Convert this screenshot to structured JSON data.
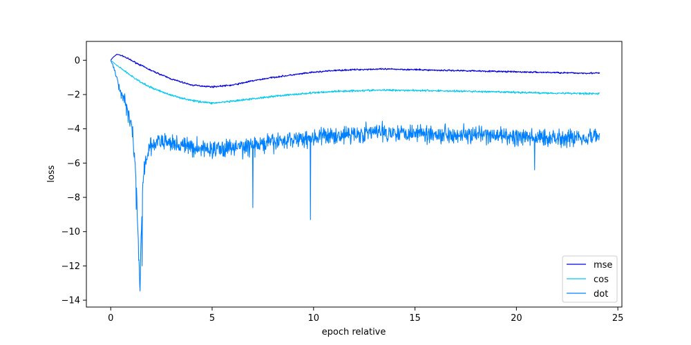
{
  "chart_data": {
    "type": "line",
    "title": "",
    "xlabel": "epoch relative",
    "ylabel": "loss",
    "xlim": [
      -1.2,
      25.2
    ],
    "ylim": [
      -14.4,
      1.1
    ],
    "xticks": [
      0,
      5,
      10,
      15,
      20,
      25
    ],
    "yticks": [
      0,
      -2,
      -4,
      -6,
      -8,
      -10,
      -12,
      -14
    ],
    "grid": false,
    "legend": "lower-right",
    "noise_seed": 7,
    "series": [
      {
        "name": "mse",
        "color": "#0000dd",
        "noise": 0.04,
        "points": [
          [
            0,
            0
          ],
          [
            0.1,
            0.15
          ],
          [
            0.3,
            0.35
          ],
          [
            0.6,
            0.25
          ],
          [
            1,
            0
          ],
          [
            1.5,
            -0.3
          ],
          [
            2,
            -0.6
          ],
          [
            3,
            -1.1
          ],
          [
            4,
            -1.45
          ],
          [
            5,
            -1.55
          ],
          [
            6,
            -1.45
          ],
          [
            7,
            -1.2
          ],
          [
            8,
            -1
          ],
          [
            9,
            -0.85
          ],
          [
            10,
            -0.7
          ],
          [
            11,
            -0.6
          ],
          [
            12,
            -0.55
          ],
          [
            13,
            -0.52
          ],
          [
            14,
            -0.52
          ],
          [
            15,
            -0.55
          ],
          [
            16,
            -0.58
          ],
          [
            17,
            -0.6
          ],
          [
            18,
            -0.62
          ],
          [
            19,
            -0.65
          ],
          [
            20,
            -0.68
          ],
          [
            21,
            -0.7
          ],
          [
            22,
            -0.72
          ],
          [
            23,
            -0.75
          ],
          [
            24.1,
            -0.75
          ]
        ]
      },
      {
        "name": "cos",
        "color": "#00c8ee",
        "noise": 0.05,
        "points": [
          [
            0,
            0
          ],
          [
            0.3,
            -0.3
          ],
          [
            0.6,
            -0.55
          ],
          [
            1,
            -0.9
          ],
          [
            1.5,
            -1.3
          ],
          [
            2,
            -1.6
          ],
          [
            3,
            -2.05
          ],
          [
            4,
            -2.35
          ],
          [
            5,
            -2.5
          ],
          [
            6,
            -2.4
          ],
          [
            7,
            -2.25
          ],
          [
            8,
            -2.1
          ],
          [
            9,
            -2
          ],
          [
            10,
            -1.9
          ],
          [
            11,
            -1.82
          ],
          [
            12,
            -1.78
          ],
          [
            13,
            -1.75
          ],
          [
            14,
            -1.74
          ],
          [
            15,
            -1.76
          ],
          [
            16,
            -1.78
          ],
          [
            17,
            -1.8
          ],
          [
            18,
            -1.82
          ],
          [
            19,
            -1.85
          ],
          [
            20,
            -1.87
          ],
          [
            21,
            -1.9
          ],
          [
            22,
            -1.92
          ],
          [
            23,
            -1.93
          ],
          [
            24.1,
            -1.95
          ]
        ]
      },
      {
        "name": "dot",
        "color": "#0080ff",
        "noise": 0.45,
        "points": [
          [
            0,
            0
          ],
          [
            0.2,
            -0.6
          ],
          [
            0.4,
            -1.5
          ],
          [
            0.6,
            -2.2
          ],
          [
            0.8,
            -2.8
          ],
          [
            1,
            -3.6
          ],
          [
            1.1,
            -4.5
          ],
          [
            1.2,
            -6
          ],
          [
            1.3,
            -8.5
          ],
          [
            1.4,
            -12
          ],
          [
            1.45,
            -13.6
          ],
          [
            1.5,
            -10
          ],
          [
            1.6,
            -7
          ],
          [
            1.7,
            -6
          ],
          [
            1.9,
            -5.2
          ],
          [
            2.2,
            -4.8
          ],
          [
            3,
            -4.8
          ],
          [
            4,
            -5.1
          ],
          [
            5,
            -5.2
          ],
          [
            6,
            -5.1
          ],
          [
            7,
            -5
          ],
          [
            8,
            -4.8
          ],
          [
            9,
            -4.6
          ],
          [
            10,
            -4.5
          ],
          [
            11,
            -4.4
          ],
          [
            12,
            -4.3
          ],
          [
            13,
            -4.2
          ],
          [
            14,
            -4.2
          ],
          [
            15,
            -4.2
          ],
          [
            16,
            -4.3
          ],
          [
            17,
            -4.3
          ],
          [
            18,
            -4.4
          ],
          [
            19,
            -4.4
          ],
          [
            20,
            -4.5
          ],
          [
            21,
            -4.5
          ],
          [
            22,
            -4.5
          ],
          [
            23,
            -4.5
          ],
          [
            24.1,
            -4.4
          ]
        ],
        "spikes": [
          [
            7,
            -8.6
          ],
          [
            9.85,
            -9.3
          ],
          [
            20.9,
            -6.4
          ],
          [
            1.55,
            -12
          ],
          [
            1.35,
            -10
          ],
          [
            1.25,
            -8.7
          ]
        ]
      }
    ]
  }
}
